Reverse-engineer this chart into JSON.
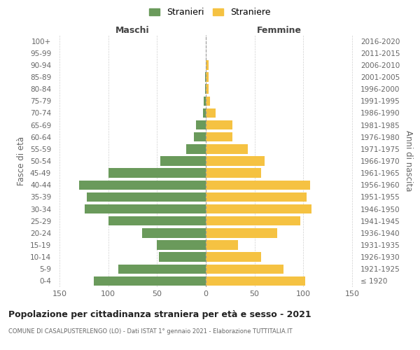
{
  "age_groups": [
    "100+",
    "95-99",
    "90-94",
    "85-89",
    "80-84",
    "75-79",
    "70-74",
    "65-69",
    "60-64",
    "55-59",
    "50-54",
    "45-49",
    "40-44",
    "35-39",
    "30-34",
    "25-29",
    "20-24",
    "15-19",
    "10-14",
    "5-9",
    "0-4"
  ],
  "birth_years": [
    "≤ 1920",
    "1921-1925",
    "1926-1930",
    "1931-1935",
    "1936-1940",
    "1941-1945",
    "1946-1950",
    "1951-1955",
    "1956-1960",
    "1961-1965",
    "1966-1970",
    "1971-1975",
    "1976-1980",
    "1981-1985",
    "1986-1990",
    "1991-1995",
    "1996-2000",
    "2001-2005",
    "2006-2010",
    "2011-2015",
    "2016-2020"
  ],
  "maschi": [
    0,
    0,
    0,
    1,
    1,
    2,
    3,
    10,
    12,
    20,
    47,
    100,
    130,
    122,
    124,
    100,
    65,
    50,
    48,
    90,
    115
  ],
  "femmine": [
    0,
    0,
    3,
    3,
    3,
    4,
    10,
    27,
    27,
    43,
    60,
    57,
    107,
    103,
    108,
    97,
    73,
    33,
    57,
    80,
    102
  ],
  "color_maschi": "#6a9a5b",
  "color_femmine": "#f5c242",
  "title": "Popolazione per cittadinanza straniera per età e sesso - 2021",
  "subtitle": "COMUNE DI CASALPUSTERLENGO (LO) - Dati ISTAT 1° gennaio 2021 - Elaborazione TUTTITALIA.IT",
  "ylabel_left": "Fasce di età",
  "ylabel_right": "Anni di nascita",
  "xlabel_maschi": "Maschi",
  "xlabel_femmine": "Femmine",
  "legend_maschi": "Stranieri",
  "legend_femmine": "Straniere",
  "xlim": 155,
  "background_color": "#ffffff",
  "grid_color": "#cccccc"
}
